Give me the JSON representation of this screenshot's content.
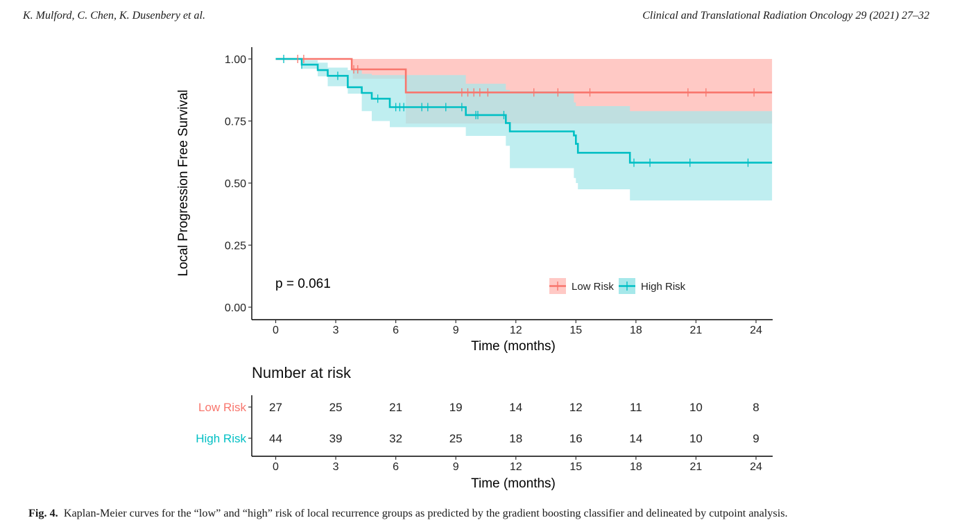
{
  "header": {
    "authors": "K. Mulford, C. Chen, K. Dusenbery et al.",
    "journal": "Clinical and Translational Radiation Oncology 29 (2021) 27–32"
  },
  "caption": {
    "label": "Fig. 4.",
    "text": "Kaplan-Meier curves for the “low” and “high” risk of local recurrence groups as predicted by the gradient boosting classifier and delineated by cutpoint analysis."
  },
  "colors": {
    "low_risk": "#F8766D",
    "high_risk": "#00BFC4",
    "low_band": "#FFC9C5",
    "high_band": "#A6E8EA",
    "overlap_band": "#A9BDBB"
  },
  "chart_data": [
    {
      "type": "line",
      "subtype": "kaplan-meier",
      "xlabel": "Time (months)",
      "ylabel": "Local Progression Free Survival",
      "xlim": [
        0,
        24
      ],
      "ylim": [
        0,
        1
      ],
      "xticks": [
        "0",
        "3",
        "6",
        "9",
        "12",
        "15",
        "18",
        "21",
        "24"
      ],
      "yticks": [
        "0.00",
        "0.25",
        "0.50",
        "0.75",
        "1.00"
      ],
      "annotation": "p = 0.061",
      "legend_position": "bottom-right inside",
      "grid": false,
      "series": [
        {
          "name": "Low Risk",
          "color": "#F8766D",
          "steps": [
            [
              0,
              1.0
            ],
            [
              3.8,
              0.958
            ],
            [
              6.5,
              0.865
            ],
            [
              24.8,
              0.865
            ]
          ],
          "ci_lower": [
            [
              0,
              1.0
            ],
            [
              3.8,
              0.958
            ],
            [
              3.85,
              0.92
            ],
            [
              6.5,
              0.74
            ],
            [
              24.8,
              0.74
            ]
          ],
          "ci_upper": [
            [
              0,
              1.0
            ],
            [
              24.8,
              1.0
            ]
          ],
          "censor_times": [
            1.1,
            1.4,
            3.9,
            4.1,
            9.3,
            9.6,
            9.9,
            10.2,
            10.6,
            12.9,
            14.1,
            15.7,
            20.6,
            21.5,
            23.9
          ]
        },
        {
          "name": "High Risk",
          "color": "#00BFC4",
          "steps": [
            [
              0,
              1.0
            ],
            [
              1.3,
              0.977
            ],
            [
              2.1,
              0.955
            ],
            [
              2.6,
              0.932
            ],
            [
              3.6,
              0.886
            ],
            [
              4.3,
              0.863
            ],
            [
              4.8,
              0.84
            ],
            [
              5.7,
              0.806
            ],
            [
              9.5,
              0.774
            ],
            [
              11.5,
              0.742
            ],
            [
              11.7,
              0.708
            ],
            [
              14.9,
              0.692
            ],
            [
              15.0,
              0.658
            ],
            [
              15.1,
              0.622
            ],
            [
              17.7,
              0.582
            ],
            [
              24.8,
              0.582
            ]
          ],
          "ci_lower": [
            [
              0,
              1.0
            ],
            [
              1.3,
              0.96
            ],
            [
              2.1,
              0.93
            ],
            [
              2.6,
              0.89
            ],
            [
              3.6,
              0.86
            ],
            [
              4.3,
              0.79
            ],
            [
              4.8,
              0.75
            ],
            [
              5.7,
              0.725
            ],
            [
              9.5,
              0.69
            ],
            [
              11.5,
              0.65
            ],
            [
              11.7,
              0.56
            ],
            [
              14.9,
              0.52
            ],
            [
              15.0,
              0.5
            ],
            [
              15.1,
              0.475
            ],
            [
              17.7,
              0.43
            ],
            [
              24.8,
              0.43
            ]
          ],
          "ci_upper": [
            [
              0,
              1.0
            ],
            [
              1.3,
              0.995
            ],
            [
              2.1,
              0.985
            ],
            [
              2.6,
              0.965
            ],
            [
              3.6,
              0.955
            ],
            [
              4.3,
              0.94
            ],
            [
              4.8,
              0.935
            ],
            [
              5.7,
              0.935
            ],
            [
              9.5,
              0.9
            ],
            [
              11.5,
              0.875
            ],
            [
              11.7,
              0.87
            ],
            [
              14.9,
              0.825
            ],
            [
              15.0,
              0.81
            ],
            [
              17.7,
              0.79
            ],
            [
              24.8,
              0.79
            ]
          ],
          "censor_times": [
            0.4,
            1.3,
            3.1,
            5.1,
            6.0,
            6.2,
            6.4,
            7.3,
            7.6,
            8.5,
            9.3,
            10.0,
            10.1,
            11.4,
            17.9,
            18.7,
            20.7,
            23.6
          ]
        }
      ]
    },
    {
      "type": "table",
      "title": "Number at risk",
      "xlabel": "Time (months)",
      "xticks": [
        "0",
        "3",
        "6",
        "9",
        "12",
        "15",
        "18",
        "21",
        "24"
      ],
      "rows": [
        {
          "name": "Low Risk",
          "color": "#F8766D",
          "values": [
            "27",
            "25",
            "21",
            "19",
            "14",
            "12",
            "11",
            "10",
            "8"
          ]
        },
        {
          "name": "High Risk",
          "color": "#00BFC4",
          "values": [
            "44",
            "39",
            "32",
            "25",
            "18",
            "16",
            "14",
            "10",
            "9"
          ]
        }
      ]
    }
  ]
}
